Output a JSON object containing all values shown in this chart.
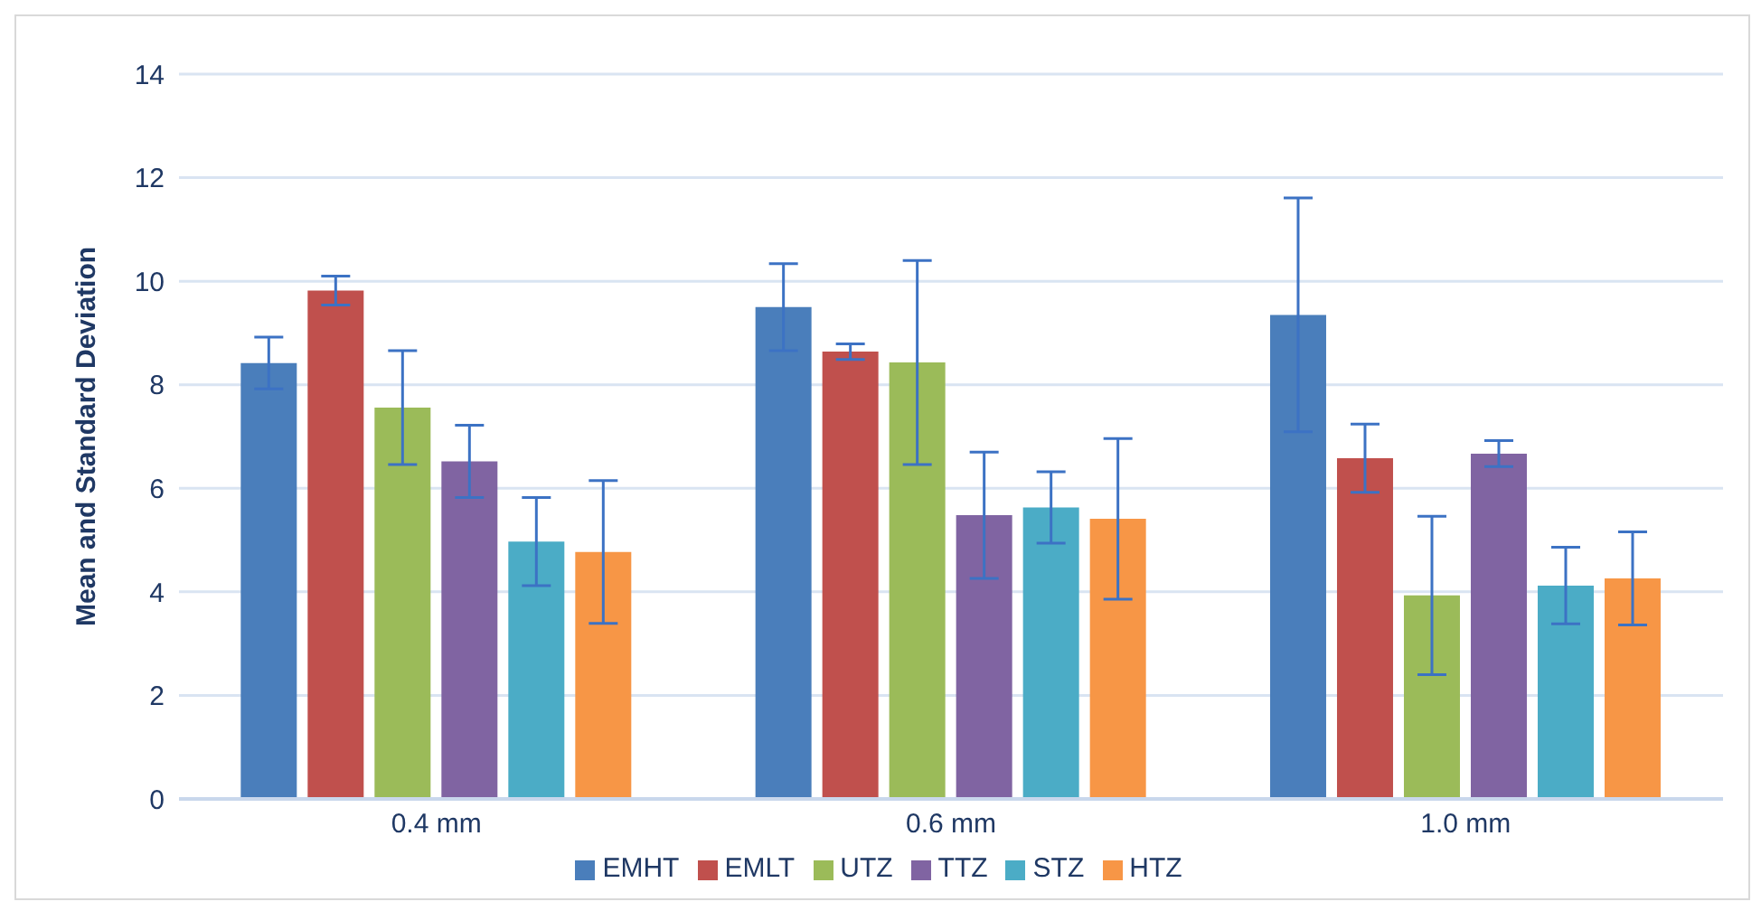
{
  "chart_data": {
    "type": "bar",
    "ylabel": "Mean and Standard Deviation",
    "categories": [
      "0.4 mm",
      "0.6 mm",
      "1.0 mm"
    ],
    "series": [
      {
        "name": "EMHT",
        "color": "#4a7ebb",
        "values": [
          8.42,
          9.5,
          9.35
        ],
        "errors": [
          0.5,
          0.84,
          2.26
        ]
      },
      {
        "name": "EMLT",
        "color": "#c0504d",
        "values": [
          9.82,
          8.64,
          6.58
        ],
        "errors": [
          0.28,
          0.15,
          0.66
        ]
      },
      {
        "name": "UTZ",
        "color": "#9bbb59",
        "values": [
          7.56,
          8.43,
          3.93
        ],
        "errors": [
          1.1,
          1.97,
          1.53
        ]
      },
      {
        "name": "TTZ",
        "color": "#8064a2",
        "values": [
          6.52,
          5.48,
          6.67
        ],
        "errors": [
          0.7,
          1.22,
          0.25
        ]
      },
      {
        "name": "STZ",
        "color": "#4bacc6",
        "values": [
          4.97,
          5.63,
          4.12
        ],
        "errors": [
          0.85,
          0.69,
          0.74
        ]
      },
      {
        "name": "HTZ",
        "color": "#f79646",
        "values": [
          4.77,
          5.41,
          4.26
        ],
        "errors": [
          1.38,
          1.55,
          0.9
        ]
      }
    ],
    "ylim": [
      0,
      14
    ],
    "yticks": [
      0,
      2,
      4,
      6,
      8,
      10,
      12,
      14
    ],
    "grid": "y",
    "legend": "bottom"
  }
}
